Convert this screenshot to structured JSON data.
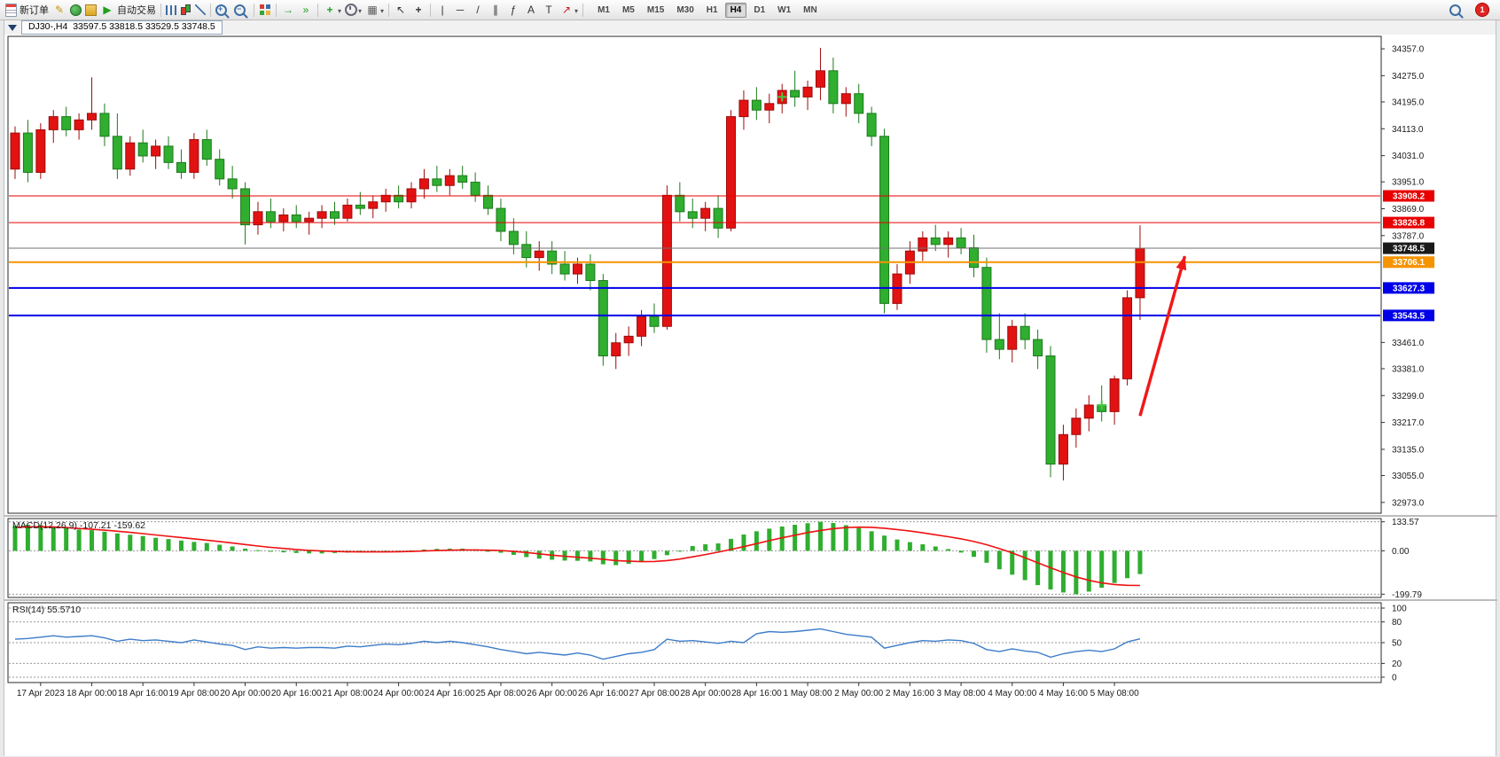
{
  "toolbar": {
    "new_order_label": "新订单",
    "autotrading_label": "自动交易",
    "notification_count": "1",
    "timeframes": [
      "M1",
      "M5",
      "M15",
      "M30",
      "H1",
      "H4",
      "D1",
      "W1",
      "MN"
    ],
    "active_timeframe": "H4",
    "items": [
      {
        "name": "new-order-button",
        "icon": "new-order",
        "label": "新订单"
      },
      {
        "name": "metaeditor-button",
        "icon": "metaeditor",
        "glyph": "✎",
        "color": "#c8960c"
      },
      {
        "name": "market-watch-button",
        "icon": "market-watch"
      },
      {
        "name": "navigator-button",
        "icon": "navigator"
      },
      {
        "name": "autotrading-button",
        "icon": "autotrading",
        "glyph": "▶",
        "color": "#1fa01f",
        "label": "自动交易"
      },
      {
        "sep": true
      },
      {
        "name": "bar-chart-button",
        "icon": "bar-chart"
      },
      {
        "name": "candlestick-button",
        "icon": "candlestick"
      },
      {
        "name": "line-chart-button",
        "icon": "line-chart"
      },
      {
        "sep": true
      },
      {
        "name": "zoom-in-button",
        "icon": "zoom-in"
      },
      {
        "name": "zoom-out-button",
        "icon": "zoom-out"
      },
      {
        "sep": true
      },
      {
        "name": "tile-windows-button",
        "icon": "tile-windows"
      },
      {
        "sep": true
      },
      {
        "name": "auto-scroll-button",
        "icon": "auto-scroll",
        "glyph": "→",
        "color": "#1fa01f"
      },
      {
        "name": "chart-shift-button",
        "icon": "chart-shift",
        "glyph": "»",
        "color": "#1fa01f"
      },
      {
        "sep": true
      },
      {
        "name": "indicators-button",
        "icon": "indicators",
        "glyph": "+",
        "color": "#1fa01f",
        "dropdown": true
      },
      {
        "name": "periods-button",
        "icon": "clock",
        "dropdown": true
      },
      {
        "name": "templates-button",
        "icon": "templates",
        "glyph": "▦",
        "color": "#5a5a5a",
        "dropdown": true
      },
      {
        "sep": true
      },
      {
        "name": "cursor-button",
        "icon": "cursor",
        "glyph": "↖",
        "color": "#333333"
      },
      {
        "name": "crosshair-button",
        "icon": "crosshair",
        "glyph": "+",
        "color": "#333333"
      },
      {
        "sep": true
      },
      {
        "name": "vertical-line-button",
        "icon": "vertical-line",
        "glyph": "|",
        "color": "#333333"
      },
      {
        "name": "horizontal-line-button",
        "icon": "horizontal-line",
        "glyph": "─",
        "color": "#333333"
      },
      {
        "name": "trendline-button",
        "icon": "trendline",
        "glyph": "/",
        "color": "#333333"
      },
      {
        "name": "channel-button",
        "icon": "channel",
        "glyph": "∥",
        "color": "#333333"
      },
      {
        "name": "fibonacci-button",
        "icon": "fibonacci",
        "glyph": "ƒ",
        "color": "#333333"
      },
      {
        "name": "text-button",
        "icon": "text",
        "glyph": "A",
        "color": "#333333"
      },
      {
        "name": "text-label-button",
        "icon": "text-label",
        "glyph": "T",
        "color": "#333333"
      },
      {
        "name": "arrows-button",
        "icon": "arrow-tool",
        "glyph": "↗",
        "color": "#c02020",
        "dropdown": true
      },
      {
        "sep": true
      }
    ]
  },
  "chart_header": {
    "symbol": "DJ30-,H4",
    "ohlc": "33597.5 33818.5 33529.5 33748.5"
  },
  "chart_data": [
    {
      "type": "candlestick",
      "title": "DJ30-,H4",
      "timeframe": "H4",
      "open": 33597.5,
      "high": 33818.5,
      "low": 33529.5,
      "close": 33748.5,
      "ylim": [
        32940,
        34395
      ],
      "bull_color": "#e31212",
      "bull_border": "#9e0b0b",
      "bear_color": "#2fae2f",
      "bear_border": "#1d7a1d",
      "y_axis": [
        34357,
        34275,
        34195,
        34113,
        34031,
        33951,
        33869,
        33787,
        33461,
        33381,
        33299,
        33217,
        33135,
        33055,
        32973
      ],
      "x_labels": [
        {
          "i": 2,
          "t": "17 Apr 2023"
        },
        {
          "i": 6,
          "t": "18 Apr 00:00"
        },
        {
          "i": 10,
          "t": "18 Apr 16:00"
        },
        {
          "i": 14,
          "t": "19 Apr 08:00"
        },
        {
          "i": 18,
          "t": "20 Apr 00:00"
        },
        {
          "i": 22,
          "t": "20 Apr 16:00"
        },
        {
          "i": 26,
          "t": "21 Apr 08:00"
        },
        {
          "i": 30,
          "t": "24 Apr 00:00"
        },
        {
          "i": 34,
          "t": "24 Apr 16:00"
        },
        {
          "i": 38,
          "t": "25 Apr 08:00"
        },
        {
          "i": 42,
          "t": "26 Apr 00:00"
        },
        {
          "i": 46,
          "t": "26 Apr 16:00"
        },
        {
          "i": 50,
          "t": "27 Apr 08:00"
        },
        {
          "i": 54,
          "t": "28 Apr 00:00"
        },
        {
          "i": 58,
          "t": "28 Apr 16:00"
        },
        {
          "i": 62,
          "t": "1 May 08:00"
        },
        {
          "i": 66,
          "t": "2 May 00:00"
        },
        {
          "i": 70,
          "t": "2 May 16:00"
        },
        {
          "i": 74,
          "t": "3 May 08:00"
        },
        {
          "i": 78,
          "t": "4 May 00:00"
        },
        {
          "i": 82,
          "t": "4 May 16:00"
        },
        {
          "i": 86,
          "t": "5 May 08:00"
        }
      ],
      "hlines": [
        {
          "price": 33908.2,
          "label": "33908.2",
          "color": "#e80000",
          "width": 1
        },
        {
          "price": 33826.8,
          "label": "33826.8",
          "color": "#e80000",
          "width": 1
        },
        {
          "price": 33748.5,
          "label": "33748.5",
          "color": "#707070",
          "width": 1,
          "box": "#1a1a1a"
        },
        {
          "price": 33706.1,
          "label": "33706.1",
          "color": "#f59300",
          "width": 2
        },
        {
          "price": 33627.3,
          "label": "33627.3",
          "color": "#0000e8",
          "width": 2
        },
        {
          "price": 33543.5,
          "label": "33543.5",
          "color": "#0000e8",
          "width": 2
        }
      ],
      "arrow": {
        "from": {
          "index": 88,
          "price": 33237
        },
        "to": {
          "index": 91.5,
          "price": 33724
        },
        "color": "#f01818"
      },
      "markers": [
        {
          "index": 60,
          "price": 34210,
          "color": "#44c944"
        },
        {
          "index": 85,
          "price": 33270,
          "color": "#44c944"
        }
      ],
      "candles": [
        [
          33990,
          34120,
          33960,
          34100
        ],
        [
          34100,
          34140,
          33950,
          33980
        ],
        [
          33980,
          34130,
          33960,
          34110
        ],
        [
          34110,
          34170,
          34070,
          34150
        ],
        [
          34150,
          34180,
          34090,
          34110
        ],
        [
          34110,
          34160,
          34080,
          34140
        ],
        [
          34140,
          34270,
          34110,
          34160
        ],
        [
          34160,
          34190,
          34060,
          34090
        ],
        [
          34090,
          34160,
          33960,
          33990
        ],
        [
          33990,
          34090,
          33970,
          34070
        ],
        [
          34070,
          34110,
          34010,
          34030
        ],
        [
          34030,
          34080,
          33990,
          34060
        ],
        [
          34060,
          34090,
          33990,
          34010
        ],
        [
          34010,
          34050,
          33960,
          33980
        ],
        [
          33980,
          34100,
          33960,
          34080
        ],
        [
          34080,
          34110,
          34000,
          34020
        ],
        [
          34020,
          34050,
          33940,
          33960
        ],
        [
          33960,
          34000,
          33900,
          33930
        ],
        [
          33930,
          33950,
          33760,
          33820
        ],
        [
          33820,
          33890,
          33790,
          33860
        ],
        [
          33860,
          33900,
          33810,
          33830
        ],
        [
          33830,
          33870,
          33800,
          33850
        ],
        [
          33850,
          33880,
          33810,
          33830
        ],
        [
          33830,
          33860,
          33790,
          33840
        ],
        [
          33840,
          33880,
          33810,
          33860
        ],
        [
          33860,
          33890,
          33820,
          33840
        ],
        [
          33840,
          33900,
          33830,
          33880
        ],
        [
          33880,
          33920,
          33850,
          33870
        ],
        [
          33870,
          33910,
          33840,
          33890
        ],
        [
          33890,
          33930,
          33860,
          33910
        ],
        [
          33910,
          33940,
          33870,
          33890
        ],
        [
          33890,
          33950,
          33870,
          33930
        ],
        [
          33930,
          33990,
          33900,
          33960
        ],
        [
          33960,
          34000,
          33920,
          33940
        ],
        [
          33940,
          33990,
          33910,
          33970
        ],
        [
          33970,
          34000,
          33930,
          33950
        ],
        [
          33950,
          33980,
          33890,
          33910
        ],
        [
          33910,
          33940,
          33850,
          33870
        ],
        [
          33870,
          33900,
          33770,
          33800
        ],
        [
          33800,
          33840,
          33730,
          33760
        ],
        [
          33760,
          33800,
          33690,
          33720
        ],
        [
          33720,
          33770,
          33680,
          33740
        ],
        [
          33740,
          33770,
          33670,
          33700
        ],
        [
          33700,
          33740,
          33650,
          33670
        ],
        [
          33670,
          33720,
          33640,
          33700
        ],
        [
          33700,
          33730,
          33620,
          33650
        ],
        [
          33650,
          33670,
          33390,
          33420
        ],
        [
          33420,
          33490,
          33380,
          33460
        ],
        [
          33460,
          33510,
          33420,
          33480
        ],
        [
          33480,
          33560,
          33450,
          33540
        ],
        [
          33540,
          33580,
          33490,
          33510
        ],
        [
          33510,
          33940,
          33500,
          33910
        ],
        [
          33910,
          33950,
          33830,
          33860
        ],
        [
          33860,
          33900,
          33810,
          33840
        ],
        [
          33840,
          33890,
          33800,
          33870
        ],
        [
          33870,
          33910,
          33780,
          33810
        ],
        [
          33810,
          34170,
          33800,
          34150
        ],
        [
          34150,
          34230,
          34110,
          34200
        ],
        [
          34200,
          34240,
          34140,
          34170
        ],
        [
          34170,
          34220,
          34130,
          34190
        ],
        [
          34190,
          34250,
          34160,
          34230
        ],
        [
          34230,
          34290,
          34180,
          34210
        ],
        [
          34210,
          34260,
          34170,
          34240
        ],
        [
          34240,
          34360,
          34200,
          34290
        ],
        [
          34290,
          34330,
          34160,
          34190
        ],
        [
          34190,
          34240,
          34150,
          34220
        ],
        [
          34220,
          34250,
          34130,
          34160
        ],
        [
          34160,
          34180,
          34060,
          34090
        ],
        [
          34090,
          34113,
          33550,
          33580
        ],
        [
          33580,
          33700,
          33560,
          33670
        ],
        [
          33670,
          33770,
          33640,
          33740
        ],
        [
          33740,
          33800,
          33710,
          33780
        ],
        [
          33780,
          33820,
          33740,
          33760
        ],
        [
          33760,
          33800,
          33720,
          33780
        ],
        [
          33780,
          33810,
          33730,
          33750
        ],
        [
          33750,
          33790,
          33660,
          33690
        ],
        [
          33690,
          33720,
          33430,
          33470
        ],
        [
          33470,
          33550,
          33410,
          33440
        ],
        [
          33440,
          33530,
          33400,
          33510
        ],
        [
          33510,
          33550,
          33440,
          33470
        ],
        [
          33470,
          33500,
          33380,
          33420
        ],
        [
          33420,
          33450,
          33050,
          33090
        ],
        [
          33090,
          33210,
          33040,
          33180
        ],
        [
          33180,
          33260,
          33140,
          33230
        ],
        [
          33230,
          33300,
          33190,
          33270
        ],
        [
          33270,
          33330,
          33220,
          33250
        ],
        [
          33250,
          33360,
          33210,
          33350
        ],
        [
          33350,
          33620,
          33330,
          33597.5
        ],
        [
          33597.5,
          33818.5,
          33529.5,
          33748.5
        ]
      ]
    },
    {
      "type": "bar",
      "name": "MACD(12,26,9)",
      "main_value": "-107.21",
      "signal_value": "-159.62",
      "hist_color": "#2fae2f",
      "signal_color": "#ee1111",
      "scale": [
        {
          "v": 133.57,
          "t": "133.57"
        },
        {
          "v": 0,
          "t": "0.00"
        },
        {
          "v": -199.79,
          "t": "-199.79"
        }
      ],
      "histogram": [
        115,
        120,
        118,
        112,
        105,
        98,
        95,
        88,
        80,
        74,
        68,
        60,
        54,
        47,
        41,
        36,
        28,
        20,
        10,
        3,
        -3,
        -7,
        -10,
        -12,
        -12,
        -10,
        -8,
        -6,
        -5,
        -4,
        -2,
        2,
        6,
        9,
        10,
        10,
        6,
        0,
        -9,
        -19,
        -29,
        -36,
        -41,
        -45,
        -46,
        -49,
        -62,
        -66,
        -60,
        -50,
        -38,
        -20,
        0,
        22,
        30,
        34,
        55,
        75,
        90,
        102,
        112,
        120,
        127,
        133.57,
        128,
        118,
        105,
        90,
        70,
        52,
        40,
        30,
        20,
        8,
        -8,
        -28,
        -55,
        -85,
        -110,
        -135,
        -158,
        -178,
        -192,
        -199.79,
        -188,
        -170,
        -148,
        -126,
        -107.21
      ],
      "signal": [
        108,
        110,
        111,
        110,
        107,
        103,
        99,
        95,
        90,
        85,
        79,
        73,
        67,
        61,
        55,
        49,
        43,
        36,
        29,
        22,
        16,
        11,
        6,
        2,
        -1,
        -3,
        -4,
        -5,
        -5,
        -5,
        -4,
        -3,
        -1,
        1,
        3,
        4,
        4,
        3,
        1,
        -3,
        -8,
        -14,
        -20,
        -25,
        -30,
        -34,
        -39,
        -45,
        -48,
        -50,
        -49,
        -45,
        -38,
        -28,
        -17,
        -6,
        6,
        19,
        33,
        47,
        60,
        72,
        84,
        94,
        102,
        107,
        109,
        108,
        104,
        98,
        91,
        83,
        74,
        65,
        55,
        43,
        28,
        10,
        -10,
        -32,
        -55,
        -78,
        -100,
        -120,
        -136,
        -148,
        -155,
        -159,
        -159.62
      ]
    },
    {
      "type": "line",
      "name": "RSI(14)",
      "value": "55.5710",
      "line_color": "#3d7cc9",
      "levels": [
        80,
        50,
        20
      ],
      "scale": [
        {
          "v": 100,
          "t": "100"
        },
        {
          "v": 80,
          "t": "80"
        },
        {
          "v": 50,
          "t": "50"
        },
        {
          "v": 20,
          "t": "20"
        },
        {
          "v": 0,
          "t": "0"
        }
      ],
      "values": [
        55,
        56,
        58,
        60,
        58,
        59,
        60,
        57,
        52,
        55,
        53,
        54,
        52,
        50,
        54,
        51,
        48,
        46,
        40,
        44,
        42,
        43,
        42,
        43,
        43,
        42,
        45,
        44,
        46,
        48,
        47,
        49,
        52,
        50,
        52,
        50,
        47,
        44,
        40,
        37,
        34,
        36,
        34,
        32,
        35,
        32,
        26,
        30,
        34,
        36,
        40,
        55,
        52,
        53,
        51,
        49,
        52,
        50,
        63,
        66,
        65,
        66,
        68,
        70,
        66,
        62,
        60,
        58,
        42,
        46,
        50,
        53,
        52,
        54,
        53,
        49,
        40,
        37,
        41,
        38,
        36,
        29,
        34,
        37,
        39,
        37,
        41,
        51,
        55.57
      ]
    }
  ]
}
